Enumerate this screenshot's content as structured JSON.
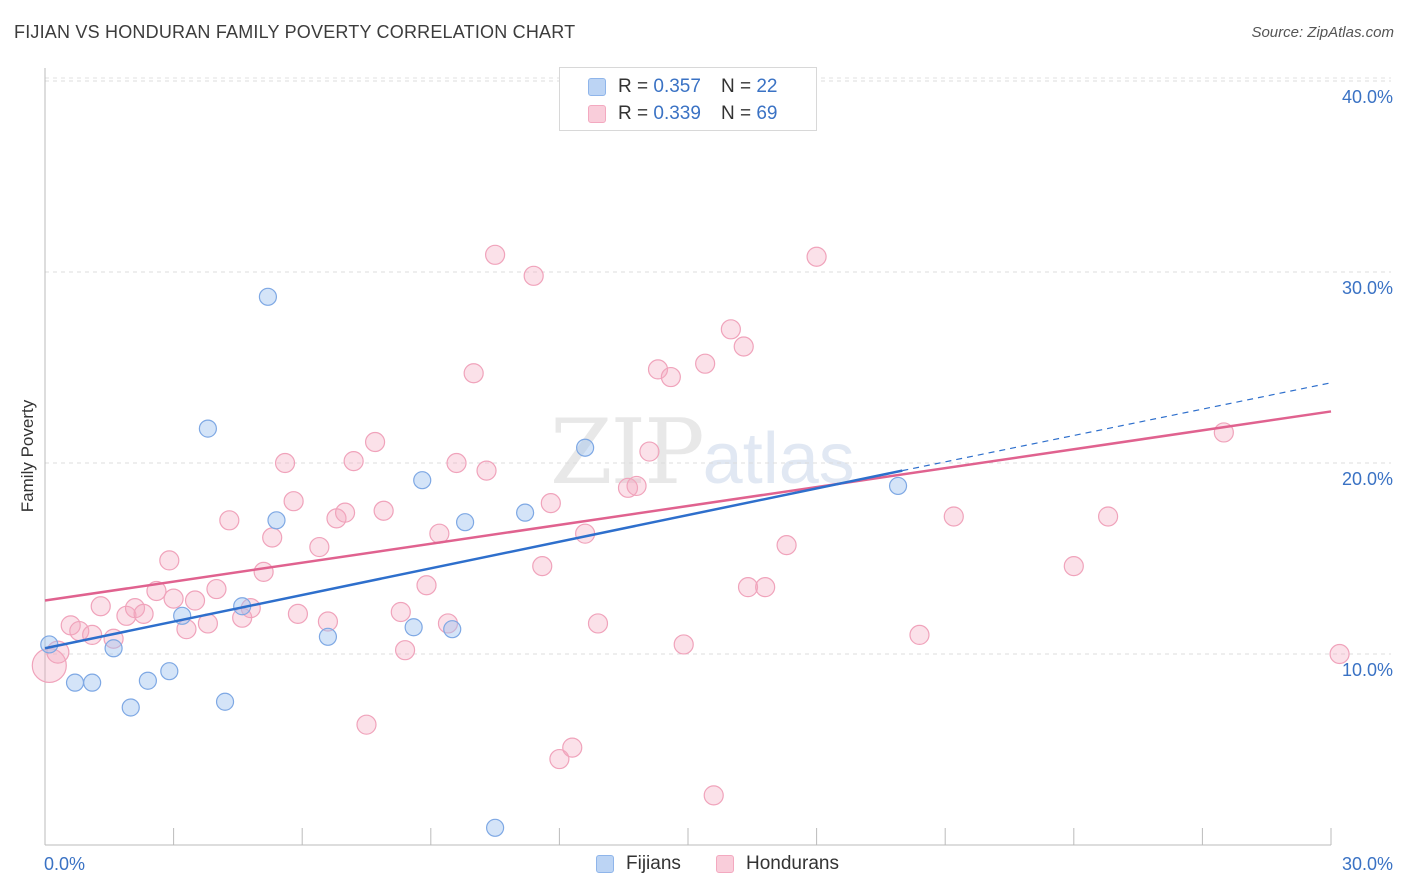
{
  "title": "FIJIAN VS HONDURAN FAMILY POVERTY CORRELATION CHART",
  "source": "Source: ZipAtlas.com",
  "watermark": {
    "zip": "ZIP",
    "atlas": "atlas"
  },
  "legend": {
    "rows": [
      {
        "r_label": "R =",
        "r_value": "0.357",
        "n_label": "N =",
        "n_value": "22"
      },
      {
        "r_label": "R =",
        "r_value": "0.339",
        "n_label": "N =",
        "n_value": "69"
      }
    ]
  },
  "bottom_legend": {
    "fijians": "Fijians",
    "hondurans": "Hondurans"
  },
  "chart_data": {
    "type": "scatter",
    "title": "FIJIAN VS HONDURAN FAMILY POVERTY CORRELATION CHART",
    "xlabel": "",
    "ylabel": "Family Poverty",
    "xlim": [
      0,
      30
    ],
    "ylim": [
      0,
      40
    ],
    "x_tick_labels": [
      "0.0%",
      "30.0%"
    ],
    "y_tick_labels": [
      "10.0%",
      "20.0%",
      "30.0%",
      "40.0%"
    ],
    "y_ticks": [
      10,
      20,
      30,
      40
    ],
    "grid": "horizontal dashed",
    "legend_position": "top-center",
    "colors": {
      "fijians": "#8fb5ea",
      "hondurans": "#f3a9c0",
      "fijians_line": "#2e6fcc",
      "hondurans_line": "#e0628f",
      "tick_text": "#3a72c4"
    },
    "series": [
      {
        "name": "Fijians",
        "r": 0.357,
        "n": 22,
        "trend": {
          "x": [
            0,
            20
          ],
          "y": [
            10.3,
            19.6
          ],
          "dashed_to": [
            30,
            24.2
          ]
        },
        "points": [
          [
            0.1,
            10.5
          ],
          [
            0.7,
            8.5
          ],
          [
            1.1,
            8.5
          ],
          [
            1.6,
            10.3
          ],
          [
            2.0,
            7.2
          ],
          [
            2.4,
            8.6
          ],
          [
            2.9,
            9.1
          ],
          [
            3.2,
            12.0
          ],
          [
            3.8,
            21.8
          ],
          [
            4.2,
            7.5
          ],
          [
            4.6,
            12.5
          ],
          [
            5.2,
            28.7
          ],
          [
            5.4,
            17.0
          ],
          [
            6.6,
            10.9
          ],
          [
            8.6,
            11.4
          ],
          [
            8.8,
            19.1
          ],
          [
            9.5,
            11.3
          ],
          [
            9.8,
            16.9
          ],
          [
            10.5,
            0.9
          ],
          [
            11.2,
            17.4
          ],
          [
            12.6,
            20.8
          ],
          [
            19.9,
            18.8
          ]
        ]
      },
      {
        "name": "Hondurans",
        "r": 0.339,
        "n": 69,
        "trend": {
          "x": [
            0,
            30
          ],
          "y": [
            12.8,
            22.7
          ]
        },
        "points": [
          [
            0.1,
            9.4
          ],
          [
            0.3,
            10.1
          ],
          [
            0.6,
            11.5
          ],
          [
            0.8,
            11.2
          ],
          [
            1.1,
            11.0
          ],
          [
            1.3,
            12.5
          ],
          [
            1.6,
            10.8
          ],
          [
            1.9,
            12.0
          ],
          [
            2.1,
            12.4
          ],
          [
            2.3,
            12.1
          ],
          [
            2.6,
            13.3
          ],
          [
            2.9,
            14.9
          ],
          [
            3.0,
            12.9
          ],
          [
            3.3,
            11.3
          ],
          [
            3.5,
            12.8
          ],
          [
            3.8,
            11.6
          ],
          [
            4.0,
            13.4
          ],
          [
            4.3,
            17.0
          ],
          [
            4.6,
            11.9
          ],
          [
            4.8,
            12.4
          ],
          [
            5.1,
            14.3
          ],
          [
            5.3,
            16.1
          ],
          [
            5.6,
            20.0
          ],
          [
            5.8,
            18.0
          ],
          [
            5.9,
            12.1
          ],
          [
            6.4,
            15.6
          ],
          [
            6.6,
            11.7
          ],
          [
            6.8,
            17.1
          ],
          [
            7.0,
            17.4
          ],
          [
            7.2,
            20.1
          ],
          [
            7.5,
            6.3
          ],
          [
            7.7,
            21.1
          ],
          [
            7.9,
            17.5
          ],
          [
            8.3,
            12.2
          ],
          [
            8.4,
            10.2
          ],
          [
            8.9,
            13.6
          ],
          [
            9.2,
            16.3
          ],
          [
            9.4,
            11.6
          ],
          [
            9.6,
            20.0
          ],
          [
            10.0,
            24.7
          ],
          [
            10.3,
            19.6
          ],
          [
            10.5,
            30.9
          ],
          [
            11.4,
            29.8
          ],
          [
            11.6,
            14.6
          ],
          [
            11.8,
            17.9
          ],
          [
            12.0,
            4.5
          ],
          [
            12.3,
            5.1
          ],
          [
            12.6,
            16.3
          ],
          [
            12.9,
            11.6
          ],
          [
            13.6,
            18.7
          ],
          [
            13.8,
            18.8
          ],
          [
            14.1,
            20.6
          ],
          [
            14.3,
            24.9
          ],
          [
            14.6,
            24.5
          ],
          [
            14.9,
            10.5
          ],
          [
            15.4,
            25.2
          ],
          [
            15.6,
            2.6
          ],
          [
            16.0,
            27.0
          ],
          [
            16.3,
            26.1
          ],
          [
            16.4,
            13.5
          ],
          [
            16.8,
            13.5
          ],
          [
            17.3,
            15.7
          ],
          [
            18.0,
            30.8
          ],
          [
            20.4,
            11.0
          ],
          [
            21.2,
            17.2
          ],
          [
            24.0,
            14.6
          ],
          [
            24.8,
            17.2
          ],
          [
            27.5,
            21.6
          ],
          [
            30.2,
            10.0
          ]
        ]
      }
    ]
  }
}
